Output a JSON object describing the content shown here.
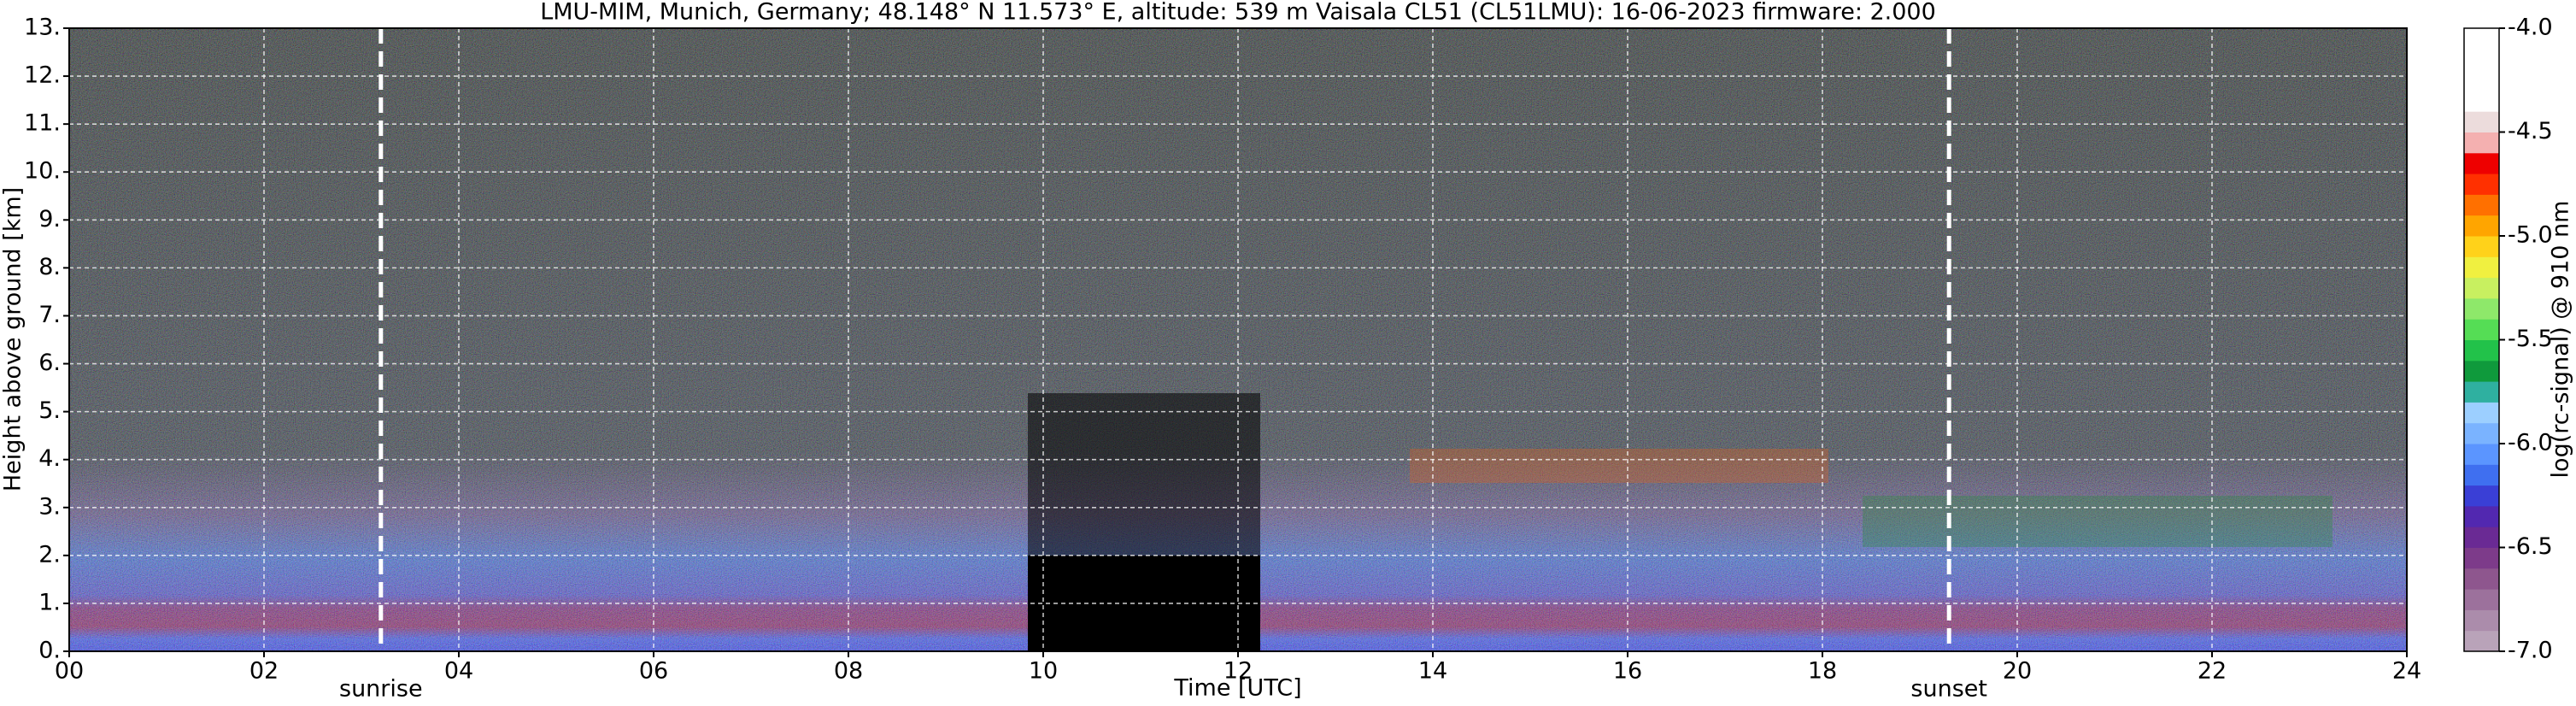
{
  "chart_data": {
    "type": "heatmap",
    "title": "LMU-MIM, Munich, Germany; 48.148° N 11.573° E, altitude: 539 m    Vaisala CL51 (CL51LMU): 16-06-2023    firmware: 2.000",
    "x_label": "Time [UTC]",
    "y_label": "Height above ground [km]",
    "colorbar_label": "log(rc-signal) @ 910 nm",
    "xlim": [
      0,
      24
    ],
    "xticks": [
      {
        "value": 0,
        "label": "00"
      },
      {
        "value": 2,
        "label": "02"
      },
      {
        "value": 4,
        "label": "04"
      },
      {
        "value": 6,
        "label": "06"
      },
      {
        "value": 8,
        "label": "08"
      },
      10,
      12,
      14,
      16,
      18,
      20,
      22,
      24
    ],
    "ylim": [
      0,
      13
    ],
    "yticks": [
      {
        "value": 0,
        "label": "0."
      },
      {
        "value": 1,
        "label": "1."
      },
      {
        "value": 2,
        "label": "2."
      },
      {
        "value": 3,
        "label": "3."
      },
      {
        "value": 4,
        "label": "4."
      },
      {
        "value": 5,
        "label": "5."
      },
      {
        "value": 6,
        "label": "6."
      },
      {
        "value": 7,
        "label": "7."
      },
      {
        "value": 8,
        "label": "8."
      },
      {
        "value": 9,
        "label": "9."
      },
      {
        "value": 10,
        "label": "10."
      },
      {
        "value": 11,
        "label": "11."
      },
      {
        "value": 12,
        "label": "12."
      },
      {
        "value": 13,
        "label": "13."
      }
    ],
    "clim": [
      -7,
      -4
    ],
    "cticks": [
      {
        "value": -7,
        "label": "-7.0"
      },
      {
        "value": -6.5,
        "label": "-6.5"
      },
      {
        "value": -6,
        "label": "-6.0"
      },
      {
        "value": -5.5,
        "label": "-5.5"
      },
      {
        "value": -5,
        "label": "-5.0"
      },
      {
        "value": -4.5,
        "label": "-4.5"
      },
      {
        "value": -4,
        "label": "-4.0"
      }
    ],
    "colormap": [
      "#b9a3b9",
      "#ab8cab",
      "#9c719c",
      "#8e568e",
      "#7d3b8a",
      "#6a2a94",
      "#5228b0",
      "#3a3fd6",
      "#3f6ff0",
      "#5b95ff",
      "#7ab3ff",
      "#9ccfff",
      "#2fb0a0",
      "#0f9a3c",
      "#22c24a",
      "#55dd55",
      "#8ee86a",
      "#c8f060",
      "#f0f040",
      "#ffd21a",
      "#ffa500",
      "#ff7000",
      "#ff3000",
      "#ee0000",
      "#f4b0b0",
      "#ecdcdc",
      "#ffffff",
      "#ffffff",
      "#ffffff",
      "#ffffff"
    ],
    "grid": true,
    "annotations": [
      {
        "x": 3.2,
        "label": "sunrise"
      },
      {
        "x": 19.3,
        "label": "sunset"
      }
    ]
  }
}
